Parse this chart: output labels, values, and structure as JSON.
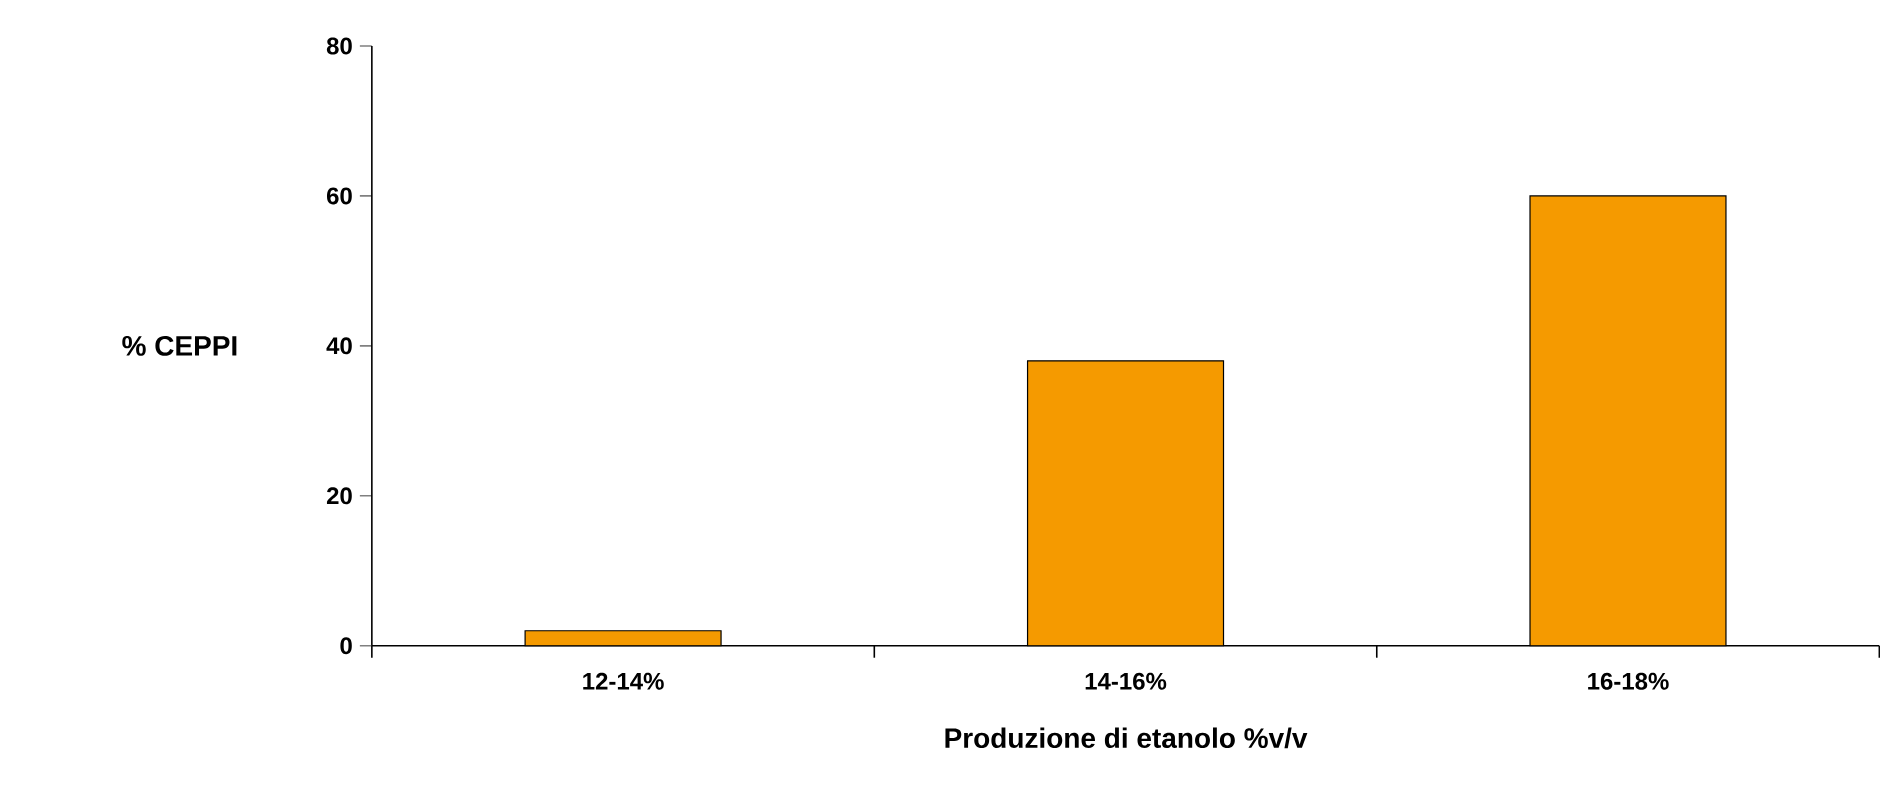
{
  "chart_data": {
    "type": "bar",
    "xlabel": "Produzione di etanolo %v/v",
    "ylabel": "% CEPPI",
    "categories": [
      "12-14%",
      "14-16%",
      "16-18%"
    ],
    "values": [
      2,
      38,
      60
    ],
    "color": "#f59a00",
    "ylim": [
      0,
      80
    ],
    "yticks": [
      0,
      20,
      40,
      60,
      80
    ],
    "grid": false
  }
}
